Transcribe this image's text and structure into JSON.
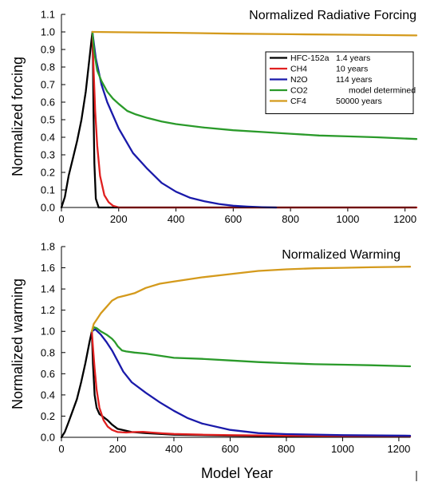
{
  "chart_data": [
    {
      "type": "line",
      "title": "Normalized Radiative Forcing",
      "xlabel": "",
      "ylabel": "Normalized forcing",
      "xlim": [
        0,
        1240
      ],
      "ylim": [
        0,
        1.1
      ],
      "xticks": [
        0,
        200,
        400,
        600,
        800,
        1000,
        1200
      ],
      "yticks": [
        0.0,
        0.1,
        0.2,
        0.3,
        0.4,
        0.5,
        0.6,
        0.7,
        0.8,
        0.9,
        1.0,
        1.1
      ],
      "grid": false,
      "legend_position": "top-right",
      "legend": [
        {
          "name": "HFC-152a",
          "lifetime": "1.4 years",
          "color": "#000000"
        },
        {
          "name": "CH4",
          "lifetime": "10 years",
          "color": "#e02020"
        },
        {
          "name": "N2O",
          "lifetime": "114 years",
          "color": "#1a1aaa"
        },
        {
          "name": "CO2",
          "lifetime": "model determined",
          "color": "#2a9a2a"
        },
        {
          "name": "CF4",
          "lifetime": "50000 years",
          "color": "#d49a1c"
        }
      ],
      "series": [
        {
          "name": "HFC-152a",
          "color": "#000000",
          "x": [
            0,
            12,
            25,
            40,
            55,
            70,
            85,
            100,
            108,
            110,
            112,
            115,
            120,
            130,
            1240
          ],
          "y": [
            0,
            0.06,
            0.18,
            0.28,
            0.38,
            0.5,
            0.66,
            0.88,
            1.0,
            0.85,
            0.55,
            0.25,
            0.05,
            0.0,
            0.0
          ]
        },
        {
          "name": "CH4",
          "color": "#e02020",
          "x": [
            108,
            112,
            118,
            125,
            135,
            150,
            165,
            180,
            200,
            1240
          ],
          "y": [
            1.0,
            0.8,
            0.55,
            0.35,
            0.18,
            0.07,
            0.03,
            0.01,
            0.0,
            0.0
          ]
        },
        {
          "name": "N2O",
          "color": "#1a1aaa",
          "x": [
            108,
            120,
            140,
            160,
            200,
            250,
            300,
            350,
            400,
            450,
            500,
            550,
            600,
            650,
            700,
            750
          ],
          "y": [
            1.0,
            0.85,
            0.7,
            0.6,
            0.45,
            0.31,
            0.22,
            0.14,
            0.09,
            0.055,
            0.035,
            0.02,
            0.01,
            0.005,
            0.002,
            0.0
          ]
        },
        {
          "name": "CO2",
          "color": "#2a9a2a",
          "x": [
            108,
            115,
            125,
            140,
            160,
            180,
            200,
            230,
            260,
            300,
            350,
            400,
            500,
            600,
            700,
            800,
            900,
            1000,
            1100,
            1240
          ],
          "y": [
            1.0,
            0.88,
            0.78,
            0.72,
            0.66,
            0.62,
            0.59,
            0.55,
            0.53,
            0.51,
            0.49,
            0.475,
            0.455,
            0.44,
            0.43,
            0.42,
            0.41,
            0.405,
            0.4,
            0.39
          ]
        },
        {
          "name": "CF4",
          "color": "#d49a1c",
          "x": [
            108,
            200,
            400,
            600,
            800,
            1000,
            1240
          ],
          "y": [
            1.0,
            0.998,
            0.995,
            0.99,
            0.987,
            0.984,
            0.98
          ]
        }
      ]
    },
    {
      "type": "line",
      "title": "Normalized Warming",
      "xlabel": "Model Year",
      "ylabel": "Normalized warming",
      "xlim": [
        0,
        1240
      ],
      "ylim": [
        0,
        1.8
      ],
      "xticks": [
        0,
        200,
        400,
        600,
        800,
        1000,
        1200
      ],
      "yticks": [
        0.0,
        0.2,
        0.4,
        0.6,
        0.8,
        1.0,
        1.2,
        1.4,
        1.6,
        1.8
      ],
      "grid": false,
      "series": [
        {
          "name": "HFC-152a",
          "color": "#000000",
          "x": [
            0,
            12,
            25,
            40,
            55,
            70,
            85,
            100,
            108,
            112,
            118,
            125,
            135,
            150,
            165,
            180,
            200,
            250,
            300,
            400,
            600,
            800,
            1000,
            1240
          ],
          "y": [
            0,
            0.05,
            0.14,
            0.25,
            0.36,
            0.52,
            0.7,
            0.9,
            1.0,
            0.7,
            0.4,
            0.28,
            0.22,
            0.19,
            0.16,
            0.12,
            0.08,
            0.05,
            0.04,
            0.025,
            0.015,
            0.01,
            0.008,
            0.005
          ]
        },
        {
          "name": "CH4",
          "color": "#e02020",
          "x": [
            108,
            112,
            118,
            125,
            135,
            150,
            165,
            180,
            200,
            230,
            260,
            290,
            320,
            360,
            400,
            500,
            600,
            800,
            1000,
            1240
          ],
          "y": [
            1.0,
            0.85,
            0.65,
            0.45,
            0.28,
            0.16,
            0.1,
            0.07,
            0.05,
            0.045,
            0.05,
            0.052,
            0.045,
            0.038,
            0.032,
            0.025,
            0.02,
            0.015,
            0.012,
            0.01
          ]
        },
        {
          "name": "N2O",
          "color": "#1a1aaa",
          "x": [
            108,
            120,
            140,
            160,
            180,
            200,
            220,
            250,
            300,
            350,
            400,
            450,
            500,
            600,
            700,
            800,
            1000,
            1240
          ],
          "y": [
            1.0,
            1.02,
            0.97,
            0.9,
            0.82,
            0.72,
            0.62,
            0.52,
            0.42,
            0.33,
            0.25,
            0.18,
            0.13,
            0.07,
            0.04,
            0.03,
            0.02,
            0.015
          ]
        },
        {
          "name": "CO2",
          "color": "#2a9a2a",
          "x": [
            108,
            115,
            125,
            140,
            160,
            180,
            190,
            200,
            215,
            230,
            260,
            300,
            350,
            400,
            500,
            600,
            700,
            800,
            900,
            1000,
            1100,
            1240
          ],
          "y": [
            1.0,
            1.04,
            1.03,
            1.0,
            0.97,
            0.93,
            0.9,
            0.86,
            0.82,
            0.81,
            0.8,
            0.79,
            0.77,
            0.75,
            0.74,
            0.725,
            0.71,
            0.7,
            0.69,
            0.685,
            0.68,
            0.67
          ]
        },
        {
          "name": "CF4",
          "color": "#d49a1c",
          "x": [
            108,
            115,
            125,
            140,
            160,
            180,
            200,
            230,
            260,
            300,
            350,
            400,
            500,
            600,
            700,
            800,
            900,
            1000,
            1100,
            1240
          ],
          "y": [
            1.0,
            1.07,
            1.11,
            1.17,
            1.23,
            1.29,
            1.32,
            1.34,
            1.36,
            1.41,
            1.45,
            1.47,
            1.51,
            1.54,
            1.57,
            1.585,
            1.595,
            1.6,
            1.605,
            1.61
          ]
        }
      ]
    }
  ]
}
